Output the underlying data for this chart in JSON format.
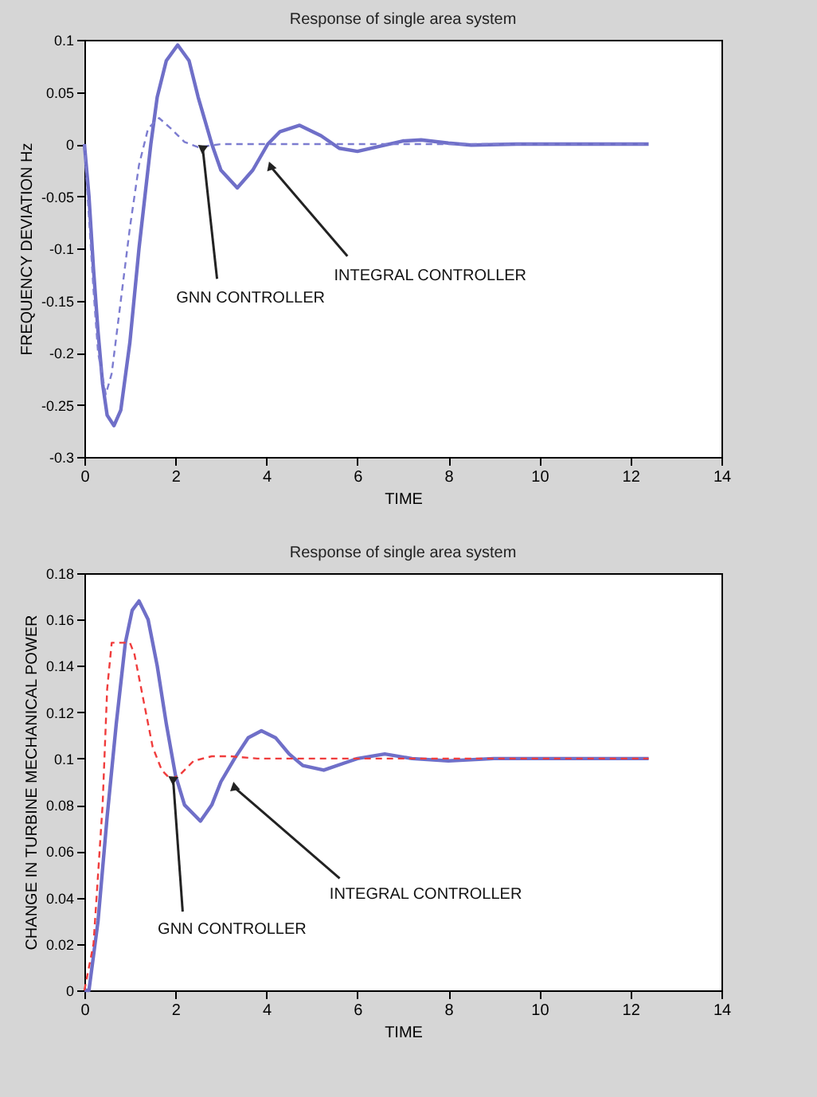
{
  "chart_data": [
    {
      "type": "line",
      "title": "Response of single area system",
      "xlabel": "TIME",
      "ylabel": "FREQUENCY DEVIATION Hz",
      "xlim": [
        0,
        14
      ],
      "xticks": [
        0,
        2,
        4,
        6,
        8,
        10,
        12,
        14
      ],
      "ylim": [
        -0.3,
        0.1
      ],
      "yticks": [
        -0.3,
        -0.25,
        -0.2,
        -0.15,
        -0.1,
        -0.05,
        0,
        0.05,
        0.1
      ],
      "grid": false,
      "legend": false,
      "series": [
        {
          "color": "#6f6fc8",
          "line_style": "solid",
          "x": [
            0,
            0.1,
            0.2,
            0.3,
            0.4,
            0.5,
            0.65,
            0.8,
            1.0,
            1.2,
            1.46,
            1.6,
            1.8,
            2.05,
            2.3,
            2.5,
            2.8,
            3.0,
            3.36,
            3.7,
            4.03,
            4.3,
            4.73,
            5.2,
            5.6,
            6.0,
            6.5,
            7.0,
            7.4,
            8.0,
            8.5,
            9.5,
            12.4
          ],
          "values": [
            0,
            -0.05,
            -0.12,
            -0.18,
            -0.23,
            -0.26,
            -0.27,
            -0.255,
            -0.19,
            -0.1,
            0,
            0.045,
            0.08,
            0.095,
            0.08,
            0.045,
            0,
            -0.025,
            -0.042,
            -0.025,
            0,
            0.012,
            0.018,
            0.008,
            -0.004,
            -0.007,
            -0.002,
            0.003,
            0.004,
            0.001,
            -0.001,
            0,
            0
          ]
        },
        {
          "color": "#7c7cd0",
          "line_style": "dashed",
          "x": [
            0,
            0.1,
            0.2,
            0.3,
            0.47,
            0.6,
            0.8,
            1.0,
            1.2,
            1.4,
            1.64,
            1.9,
            2.2,
            2.5,
            3.0,
            12.4
          ],
          "values": [
            0,
            -0.07,
            -0.14,
            -0.2,
            -0.24,
            -0.22,
            -0.15,
            -0.08,
            -0.02,
            0.015,
            0.025,
            0.015,
            0.002,
            -0.003,
            0,
            0
          ]
        }
      ],
      "annotations": [
        {
          "text": "GNN CONTROLLER",
          "x": 2.6,
          "y": -0.004
        },
        {
          "text": "INTEGRAL CONTROLLER",
          "x": 4.1,
          "y": -0.022
        }
      ]
    },
    {
      "type": "line",
      "title": "Response of single area system",
      "xlabel": "TIME",
      "ylabel": "CHANGE IN TURBINE MECHANICAL POWER",
      "xlim": [
        0,
        14
      ],
      "xticks": [
        0,
        2,
        4,
        6,
        8,
        10,
        12,
        14
      ],
      "ylim": [
        0,
        0.18
      ],
      "yticks": [
        0,
        0.02,
        0.04,
        0.06,
        0.08,
        0.1,
        0.12,
        0.14,
        0.16,
        0.18
      ],
      "grid": false,
      "legend": false,
      "series": [
        {
          "color": "#6f6fc8",
          "line_style": "solid",
          "x": [
            0,
            0.1,
            0.3,
            0.5,
            0.7,
            0.9,
            1.05,
            1.2,
            1.4,
            1.6,
            1.8,
            2.0,
            2.2,
            2.55,
            2.8,
            3.0,
            3.3,
            3.6,
            3.89,
            4.2,
            4.5,
            4.8,
            5.26,
            5.7,
            6.0,
            6.6,
            7.2,
            8.0,
            9.0,
            12.4
          ],
          "values": [
            0,
            0,
            0.03,
            0.075,
            0.115,
            0.15,
            0.164,
            0.168,
            0.16,
            0.14,
            0.115,
            0.093,
            0.08,
            0.073,
            0.08,
            0.09,
            0.1,
            0.109,
            0.112,
            0.109,
            0.102,
            0.097,
            0.095,
            0.098,
            0.1,
            0.102,
            0.1,
            0.099,
            0.1,
            0.1
          ]
        },
        {
          "color": "#f03c3c",
          "line_style": "dashed",
          "x": [
            0,
            0.2,
            0.4,
            0.5,
            0.6,
            1.0,
            1.1,
            1.3,
            1.5,
            1.7,
            1.9,
            2.1,
            2.4,
            2.8,
            3.2,
            3.8,
            12.4
          ],
          "values": [
            0,
            0.02,
            0.08,
            0.13,
            0.15,
            0.15,
            0.145,
            0.125,
            0.105,
            0.095,
            0.091,
            0.093,
            0.099,
            0.101,
            0.101,
            0.1,
            0.1
          ]
        }
      ],
      "annotations": [
        {
          "text": "GNN CONTROLLER",
          "x": 1.95,
          "y": 0.091
        },
        {
          "text": "INTEGRAL CONTROLLER",
          "x": 3.3,
          "y": 0.0875
        }
      ]
    }
  ]
}
